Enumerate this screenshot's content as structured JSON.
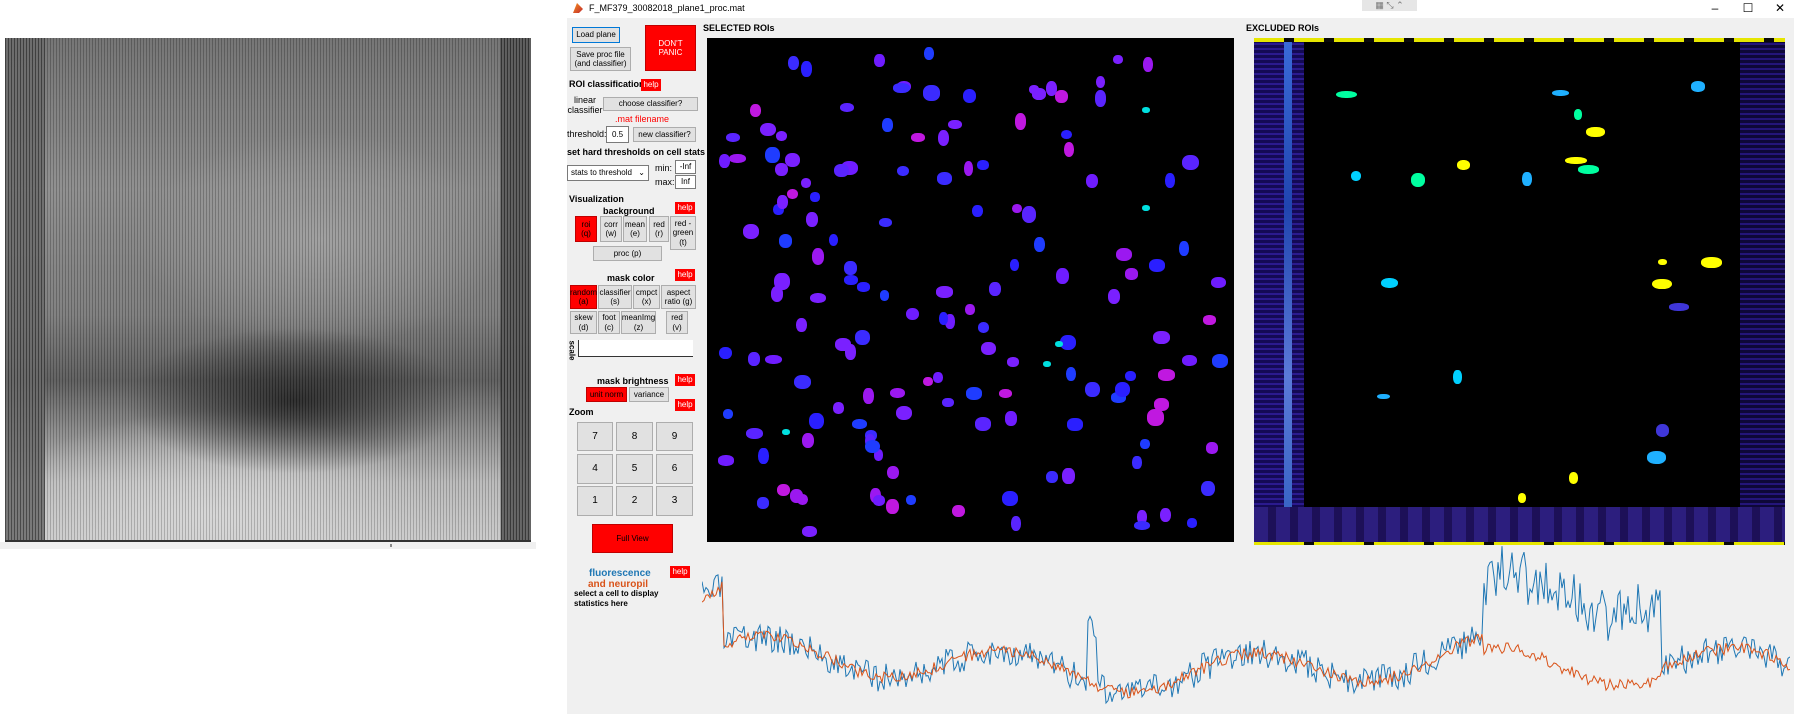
{
  "window": {
    "title": "F_MF379_30082018_plane1_proc.mat",
    "minimize_glyph": "–",
    "maximize_glyph": "☐",
    "close_glyph": "✕"
  },
  "controls": {
    "load_plane": "Load plane",
    "save_proc": "Save proc file (and classifier)",
    "dont_panic": "DON'T PANIC",
    "roi_classification": "ROI classification",
    "help": "help",
    "linear_classifier": "linear classifier",
    "choose_classifier": "choose classifier?",
    "mat_filename": ".mat filename",
    "threshold_label": "threshold:",
    "threshold_value": "0.5",
    "new_classifier": "new classifier?",
    "hard_thresholds": "set hard thresholds on cell stats",
    "stats_select": "stats to threshold",
    "min_label": "min:",
    "min_value": "-Inf",
    "max_label": "max:",
    "max_value": "Inf",
    "visualization": "Visualization",
    "background": "background",
    "bg_buttons": [
      "roi (q)",
      "corr (w)",
      "mean (e)",
      "red (r)",
      "red - green (t)"
    ],
    "proc": "proc (p)",
    "mask_color": "mask color",
    "mask_buttons_row1": [
      "random (a)",
      "classifier (s)",
      "cmpct (x)",
      "aspect ratio (g)"
    ],
    "mask_buttons_row2": [
      "skew (d)",
      "foot (c)",
      "meanImg (z)",
      "red (v)"
    ],
    "scale": "scale",
    "mask_brightness": "mask brightness",
    "brightness_buttons": [
      "unit norm",
      "variance"
    ],
    "zoom": "Zoom",
    "zoom_keys": [
      "7",
      "8",
      "9",
      "4",
      "5",
      "6",
      "1",
      "2",
      "3"
    ],
    "full_view": "Full View",
    "fluorescence": "fluorescence",
    "neuropil": "and neuropil",
    "select_cell": "select a cell to display statistics here"
  },
  "panels": {
    "selected": "SELECTED ROIs",
    "excluded": "EXCLUDED ROIs"
  },
  "colors": {
    "fluorescence": "#1f77b4",
    "neuropil": "#d95319",
    "panel_bg": "#f0f0f0",
    "red_button": "#ff0000"
  }
}
